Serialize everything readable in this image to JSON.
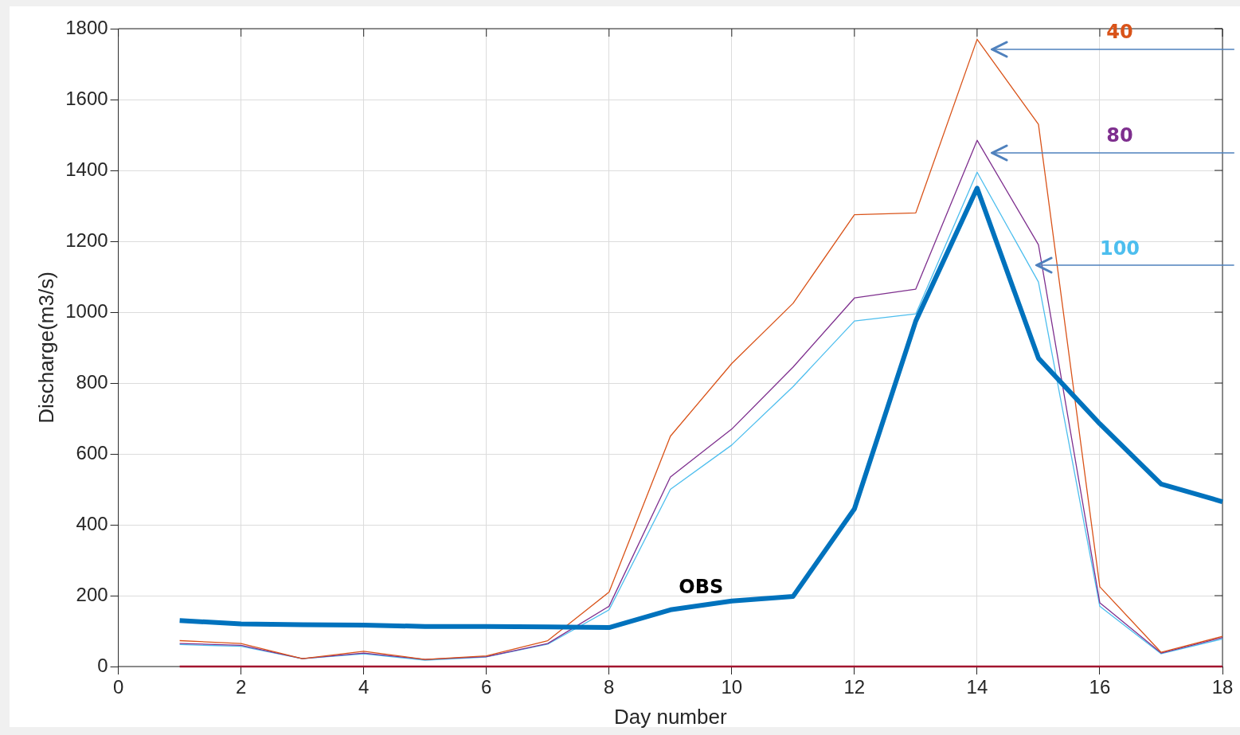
{
  "chart_data": {
    "type": "line",
    "xlabel": "Day number",
    "ylabel": "Discharge(m3/s)",
    "x": [
      1,
      2,
      3,
      4,
      5,
      6,
      7,
      8,
      9,
      10,
      11,
      12,
      13,
      14,
      15,
      16,
      17,
      18
    ],
    "xlim": [
      0,
      18
    ],
    "xticks": [
      0,
      2,
      4,
      6,
      8,
      10,
      12,
      14,
      16,
      18
    ],
    "ylim": [
      0,
      1800
    ],
    "yticks": [
      0,
      200,
      400,
      600,
      800,
      1000,
      1200,
      1400,
      1600,
      1800
    ],
    "grid": true,
    "legend": false,
    "marker": "none",
    "line_style": "solid",
    "series": [
      {
        "name": "OBS",
        "color": "#0072bd",
        "values": [
          130,
          120,
          118,
          117,
          113,
          113,
          112,
          110,
          160,
          185,
          198,
          445,
          975,
          1350,
          870,
          685,
          515,
          465
        ]
      },
      {
        "name": "40",
        "color": "#d95319",
        "values": [
          73,
          65,
          22,
          43,
          20,
          30,
          73,
          210,
          650,
          855,
          1025,
          1275,
          1280,
          1770,
          1530,
          225,
          40,
          85
        ]
      },
      {
        "name": "80",
        "color": "#7e2f8e",
        "values": [
          65,
          60,
          22,
          38,
          20,
          28,
          65,
          170,
          535,
          670,
          845,
          1040,
          1065,
          1485,
          1190,
          180,
          38,
          82
        ]
      },
      {
        "name": "100",
        "color": "#4dbeee",
        "values": [
          62,
          57,
          22,
          36,
          18,
          27,
          63,
          160,
          500,
          625,
          790,
          975,
          995,
          1395,
          1085,
          170,
          36,
          78
        ]
      },
      {
        "color": "#a2142f",
        "values": [
          0,
          0,
          0,
          0,
          0,
          0,
          0,
          0,
          0,
          0,
          0,
          0,
          0,
          0,
          0,
          0,
          0,
          0
        ]
      }
    ]
  }
}
